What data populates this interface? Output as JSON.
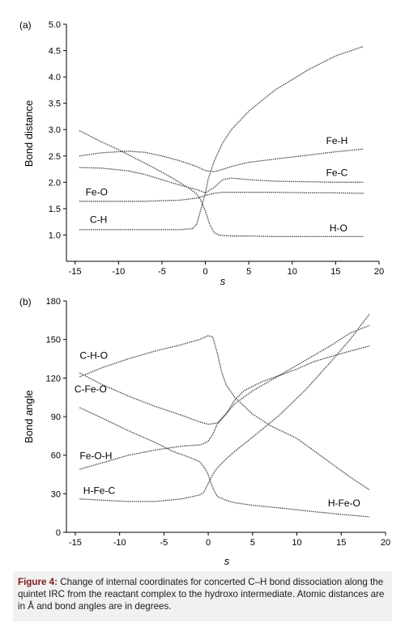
{
  "caption": {
    "label": "Figure 4:",
    "text": "Change of internal coordinates for concerted C–H bond dissociation along the quintet IRC from the reactant complex to the hydroxo intermediate. Atomic distances are in Å and bond angles are in degrees."
  },
  "chart_data": [
    {
      "panel": "(a)",
      "type": "line",
      "xlabel": "s",
      "ylabel": "Bond distance",
      "xlim": [
        -16,
        20
      ],
      "ylim": [
        0.5,
        5.0
      ],
      "x_ticks": [
        -15,
        -10,
        -5,
        0,
        5,
        10,
        15,
        20
      ],
      "y_ticks": [
        1.0,
        1.5,
        2.0,
        2.5,
        3.0,
        3.5,
        4.0,
        4.5,
        5.0
      ],
      "line_color": "#333333",
      "series": [
        {
          "name": "Fe-H",
          "x": [
            -14.5,
            -12,
            -9,
            -7,
            -5,
            -3,
            -1,
            0,
            1,
            1.5,
            3,
            5,
            8,
            12,
            15,
            18.2
          ],
          "y": [
            2.5,
            2.56,
            2.59,
            2.57,
            2.5,
            2.41,
            2.3,
            2.22,
            2.2,
            2.22,
            2.3,
            2.38,
            2.44,
            2.52,
            2.58,
            2.63
          ]
        },
        {
          "name": "Fe-C",
          "x": [
            -14.5,
            -12,
            -9,
            -7,
            -5,
            -3,
            -1,
            0,
            1,
            2,
            3,
            5,
            8,
            12,
            15,
            18.2
          ],
          "y": [
            2.28,
            2.27,
            2.22,
            2.15,
            2.05,
            1.95,
            1.86,
            1.8,
            1.9,
            2.05,
            2.08,
            2.05,
            2.02,
            2.01,
            2.0,
            2.0
          ]
        },
        {
          "name": "Fe-O",
          "x": [
            -14.5,
            -12,
            -9,
            -7,
            -5,
            -3,
            -1,
            0,
            1,
            2,
            3,
            5,
            8,
            12,
            15,
            18.2
          ],
          "y": [
            1.64,
            1.64,
            1.64,
            1.64,
            1.65,
            1.66,
            1.7,
            1.75,
            1.79,
            1.81,
            1.81,
            1.81,
            1.81,
            1.8,
            1.8,
            1.79
          ]
        },
        {
          "name": "C-H",
          "x": [
            -14.5,
            -12,
            -9,
            -7,
            -5,
            -3,
            -1.5,
            -1,
            -0.5,
            0,
            0.3,
            0.7,
            1,
            2,
            3,
            5,
            8,
            12,
            15,
            18.2
          ],
          "y": [
            1.1,
            1.1,
            1.1,
            1.1,
            1.1,
            1.1,
            1.12,
            1.2,
            1.5,
            1.8,
            2.05,
            2.25,
            2.4,
            2.75,
            3.0,
            3.35,
            3.75,
            4.15,
            4.4,
            4.58
          ]
        },
        {
          "name": "H-O",
          "x": [
            -14.5,
            -12,
            -10,
            -8,
            -6,
            -4,
            -2,
            -1,
            -0.5,
            0,
            0.5,
            1,
            1.5,
            2,
            3,
            5,
            8,
            12,
            15,
            18.2
          ],
          "y": [
            2.98,
            2.77,
            2.62,
            2.45,
            2.28,
            2.1,
            1.9,
            1.78,
            1.65,
            1.45,
            1.2,
            1.05,
            1.0,
            0.99,
            0.98,
            0.98,
            0.97,
            0.97,
            0.97,
            0.97
          ]
        }
      ],
      "annotations": [
        {
          "text": "Fe-H",
          "x": 13.9,
          "y": 2.73
        },
        {
          "text": "Fe-C",
          "x": 13.9,
          "y": 2.12
        },
        {
          "text": "Fe-O",
          "x": -13.8,
          "y": 1.75
        },
        {
          "text": "C-H",
          "x": -13.3,
          "y": 1.23
        },
        {
          "text": "H-O",
          "x": 14.3,
          "y": 1.07
        }
      ]
    },
    {
      "panel": "(b)",
      "type": "line",
      "xlabel": "s",
      "ylabel": "Bond angle",
      "xlim": [
        -16,
        20
      ],
      "ylim": [
        0,
        180
      ],
      "x_ticks": [
        -15,
        -10,
        -5,
        0,
        5,
        10,
        15,
        20
      ],
      "y_ticks": [
        0,
        30,
        60,
        90,
        120,
        150,
        180
      ],
      "line_color": "#333333",
      "series": [
        {
          "name": "C-H-O",
          "x": [
            -14.5,
            -12,
            -9,
            -6,
            -3,
            -1,
            0,
            0.5,
            1,
            1.5,
            2,
            3,
            5,
            7,
            10,
            13,
            16,
            18.2
          ],
          "y": [
            121,
            128,
            135,
            141,
            146,
            150,
            153,
            152,
            140,
            125,
            115,
            105,
            92,
            83,
            73,
            58,
            43,
            33
          ]
        },
        {
          "name": "C-Fe-O",
          "x": [
            -14.5,
            -12,
            -9,
            -6,
            -3,
            -1,
            0,
            1,
            2,
            3,
            4,
            6,
            8,
            10,
            12,
            14,
            16,
            18.2
          ],
          "y": [
            124,
            115,
            106,
            98,
            91,
            86,
            84,
            85,
            92,
            103,
            110,
            117,
            122,
            127,
            133,
            137,
            141,
            145
          ]
        },
        {
          "name": "Fe-O-H",
          "x": [
            -14.5,
            -12,
            -9,
            -6,
            -3,
            -1,
            -0.5,
            0,
            0.5,
            1,
            2,
            3,
            5,
            8,
            11,
            14,
            16,
            18.2
          ],
          "y": [
            49,
            54,
            60,
            64,
            67,
            68,
            69,
            71,
            76,
            84,
            92,
            100,
            110,
            122,
            134,
            146,
            155,
            161
          ]
        },
        {
          "name": "H-Fe-C",
          "x": [
            -14.5,
            -12,
            -9,
            -6,
            -3,
            -1,
            -0.5,
            0,
            0.5,
            1,
            2,
            3,
            5,
            8,
            11,
            14,
            16,
            18.2
          ],
          "y": [
            26,
            25,
            24,
            24,
            26,
            29,
            31,
            38,
            45,
            50,
            57,
            63,
            74,
            91,
            111,
            134,
            150,
            170
          ]
        },
        {
          "name": "H-Fe-O",
          "x": [
            -14.5,
            -12,
            -9,
            -6,
            -4,
            -2,
            -1,
            -0.5,
            0,
            0.3,
            0.7,
            1,
            2,
            3,
            5,
            8,
            12,
            15,
            18.2
          ],
          "y": [
            97,
            89,
            79,
            70,
            63,
            58,
            55,
            51,
            45,
            38,
            32,
            28,
            25,
            23,
            21,
            19,
            16,
            14,
            12
          ]
        }
      ],
      "annotations": [
        {
          "text": "C-H-O",
          "x": -14.5,
          "y": 135
        },
        {
          "text": "C-Fe-O",
          "x": -15.1,
          "y": 109
        },
        {
          "text": "Fe-O-H",
          "x": -14.5,
          "y": 57
        },
        {
          "text": "H-Fe-C",
          "x": -14.1,
          "y": 30
        },
        {
          "text": "H-Fe-O",
          "x": 13.5,
          "y": 20
        }
      ]
    }
  ]
}
